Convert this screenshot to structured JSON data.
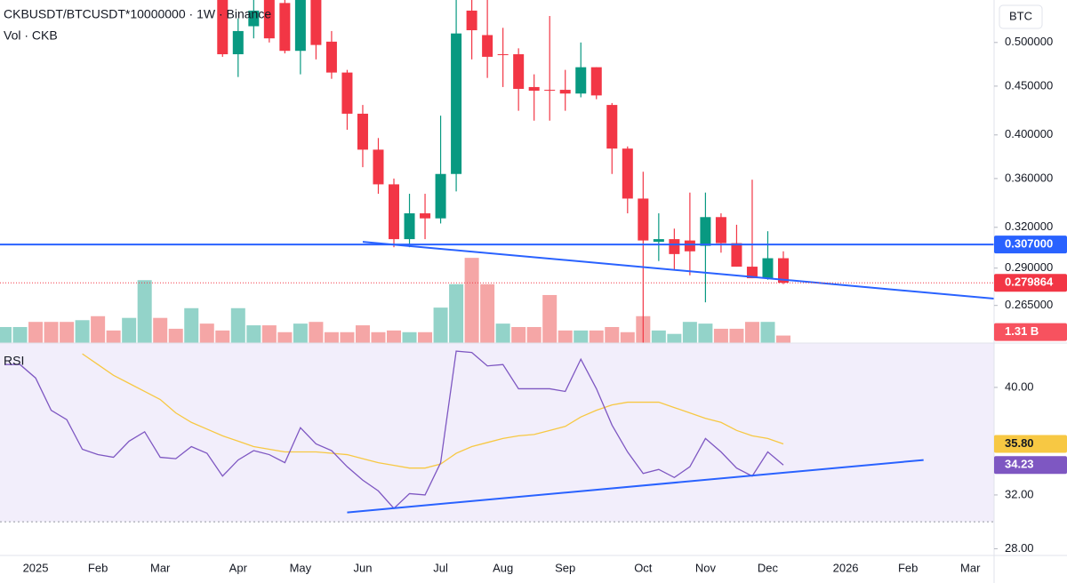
{
  "chart_data": {
    "type": "candlestick",
    "title": "CKBUSDT/BTCUSDT*10000000 · 1W · Binance",
    "currency": "BTC",
    "log_scale": true,
    "grid": false,
    "up_color": "#089981",
    "down_color": "#f23645",
    "categories": [
      null,
      null,
      "2025",
      null,
      null,
      null,
      "Feb",
      null,
      null,
      null,
      "Mar",
      null,
      null,
      null,
      null,
      "Apr",
      null,
      null,
      null,
      "May",
      null,
      null,
      null,
      "Jun",
      null,
      null,
      null,
      null,
      "Jul",
      null,
      null,
      null,
      "Aug",
      null,
      null,
      null,
      "Sep",
      null,
      null,
      null,
      null,
      "Oct",
      null,
      null,
      null,
      "Nov",
      null,
      null,
      null,
      "Dec",
      null,
      null,
      null,
      null,
      "2026",
      null,
      null,
      null,
      "Feb",
      null,
      null,
      null,
      "Mar"
    ],
    "open": [
      null,
      null,
      null,
      null,
      null,
      null,
      null,
      null,
      null,
      null,
      null,
      null,
      null,
      null,
      0.56,
      0.486,
      0.52,
      0.56,
      0.55,
      0.49,
      0.56,
      0.501,
      0.465,
      0.421,
      0.386,
      0.355,
      0.311,
      0.331,
      0.327,
      0.364,
      0.54,
      0.509,
      0.486,
      0.486,
      0.449,
      0.446,
      0.446,
      0.442,
      0.471,
      0.43,
      0.387,
      0.343,
      0.309,
      0.311,
      0.31,
      0.306,
      0.328,
      0.308,
      0.291,
      0.283,
      0.297,
      null,
      null,
      null,
      null,
      null,
      null,
      null,
      null,
      null,
      null,
      null,
      null
    ],
    "high": [
      null,
      null,
      null,
      null,
      null,
      null,
      null,
      null,
      null,
      null,
      null,
      null,
      null,
      null,
      0.58,
      0.53,
      0.56,
      0.57,
      0.56,
      0.57,
      0.57,
      0.514,
      0.468,
      0.43,
      0.397,
      0.36,
      0.347,
      0.347,
      0.419,
      0.56,
      0.58,
      0.555,
      0.518,
      0.493,
      0.463,
      0.533,
      0.468,
      0.5,
      0.471,
      0.432,
      0.389,
      0.366,
      0.331,
      0.319,
      0.348,
      0.348,
      0.331,
      0.322,
      0.359,
      0.317,
      0.302,
      null,
      null,
      null,
      null,
      null,
      null,
      null,
      null,
      null,
      null,
      null,
      null
    ],
    "low": [
      null,
      null,
      null,
      null,
      null,
      null,
      null,
      null,
      null,
      null,
      null,
      null,
      null,
      null,
      0.483,
      0.46,
      0.505,
      0.5,
      0.487,
      0.463,
      0.48,
      0.458,
      0.405,
      0.37,
      0.347,
      0.305,
      0.305,
      0.311,
      0.323,
      0.349,
      0.48,
      0.459,
      0.449,
      0.424,
      0.414,
      0.414,
      0.424,
      0.438,
      0.436,
      0.364,
      0.331,
      0.242,
      0.295,
      0.289,
      0.285,
      0.267,
      0.301,
      0.291,
      0.283,
      0.282,
      0.279,
      null,
      null,
      null,
      null,
      null,
      null,
      null,
      null,
      null,
      null,
      null,
      null
    ],
    "close": [
      null,
      null,
      null,
      null,
      null,
      null,
      null,
      null,
      null,
      null,
      null,
      null,
      null,
      null,
      0.486,
      0.514,
      0.54,
      0.505,
      0.49,
      0.56,
      0.497,
      0.465,
      0.421,
      0.386,
      0.355,
      0.311,
      0.331,
      0.327,
      0.364,
      0.511,
      0.515,
      0.483,
      0.485,
      0.447,
      0.445,
      0.445,
      0.442,
      0.471,
      0.44,
      0.387,
      0.343,
      0.31,
      0.311,
      0.3,
      0.302,
      0.328,
      0.308,
      0.291,
      0.283,
      0.297,
      0.279864,
      null,
      null,
      null,
      null,
      null,
      null,
      null,
      null,
      null,
      null,
      null,
      null
    ],
    "ylim": [
      0.242,
      0.554
    ],
    "yticks": [
      {
        "value": 0.5,
        "label": "0.500000"
      },
      {
        "value": 0.45,
        "label": "0.450000"
      },
      {
        "value": 0.4,
        "label": "0.400000"
      },
      {
        "value": 0.36,
        "label": "0.360000"
      },
      {
        "value": 0.32,
        "label": "0.320000"
      },
      {
        "value": 0.29,
        "label": "0.290000"
      },
      {
        "value": 0.265,
        "label": "0.265000"
      }
    ],
    "hline": {
      "value": 0.307,
      "label": "0.307000",
      "color": "#2962ff"
    },
    "trendline": {
      "x": [
        23,
        50
      ],
      "y": [
        0.309,
        0.282
      ],
      "extend": "right",
      "color": "#2962ff"
    },
    "volume": {
      "title": "Vol · CKB",
      "ylim": [
        0,
        60
      ],
      "values": [
        2.8,
        2.8,
        3.7,
        3.7,
        3.7,
        4.0,
        4.7,
        2.2,
        4.4,
        11.0,
        4.4,
        2.5,
        6.1,
        3.4,
        2.2,
        6.1,
        3.1,
        3.1,
        1.9,
        3.4,
        3.7,
        1.9,
        1.9,
        3.1,
        1.9,
        2.2,
        1.9,
        1.9,
        6.2,
        10.3,
        14.9,
        10.3,
        3.4,
        2.8,
        2.8,
        8.4,
        2.2,
        2.2,
        2.2,
        2.8,
        1.9,
        4.7,
        2.2,
        1.6,
        3.7,
        3.4,
        2.5,
        2.5,
        3.7,
        3.7,
        1.31,
        null,
        null,
        null,
        null,
        null,
        null,
        null,
        null,
        null,
        null,
        null,
        null
      ],
      "colors": [
        "#93d3c9",
        "#93d3c9",
        "#f5a6a6",
        "#f5a6a6",
        "#f5a6a6",
        "#93d3c9",
        "#f5a6a6",
        "#f5a6a6",
        "#93d3c9",
        "#93d3c9",
        "#f5a6a6",
        "#f5a6a6",
        "#93d3c9",
        "#f5a6a6",
        "#f5a6a6",
        "#93d3c9",
        "#93d3c9",
        "#f5a6a6",
        "#f5a6a6",
        "#93d3c9",
        "#f5a6a6",
        "#f5a6a6",
        "#f5a6a6",
        "#f5a6a6",
        "#f5a6a6",
        "#f5a6a6",
        "#93d3c9",
        "#f5a6a6",
        "#93d3c9",
        "#93d3c9",
        "#f5a6a6",
        "#f5a6a6",
        "#93d3c9",
        "#f5a6a6",
        "#f5a6a6",
        "#f5a6a6",
        "#f5a6a6",
        "#93d3c9",
        "#f5a6a6",
        "#f5a6a6",
        "#f5a6a6",
        "#f5a6a6",
        "#93d3c9",
        "#93d3c9",
        "#93d3c9",
        "#93d3c9",
        "#f5a6a6",
        "#f5a6a6",
        "#f5a6a6",
        "#93d3c9",
        "#f5a6a6",
        null,
        null,
        null,
        null,
        null,
        null,
        null,
        null,
        null,
        null,
        null,
        null
      ],
      "last_value_label": "1.31 B"
    },
    "rsi": {
      "title": "RSI",
      "color": "#7e57c2",
      "ylim": [
        27.5,
        43.3
      ],
      "yticks": [
        {
          "value": 40,
          "label": "40.00"
        },
        {
          "value": 32,
          "label": "32.00"
        },
        {
          "value": 28,
          "label": "28.00"
        }
      ],
      "oversold_line": 30,
      "values": [
        41.7,
        41.7,
        40.7,
        38.3,
        37.6,
        35.4,
        35.0,
        34.8,
        36.0,
        36.7,
        34.8,
        34.7,
        35.6,
        35.1,
        33.4,
        34.6,
        35.3,
        35.0,
        34.4,
        37.0,
        35.8,
        35.3,
        34.1,
        33.1,
        32.3,
        31.0,
        32.1,
        32.0,
        34.4,
        42.7,
        42.6,
        41.6,
        41.7,
        39.9,
        39.9,
        39.9,
        39.7,
        42.1,
        39.9,
        37.2,
        35.2,
        33.6,
        33.9,
        33.3,
        34.1,
        36.2,
        35.2,
        34.0,
        33.4,
        35.2,
        34.23,
        null,
        null,
        null,
        null,
        null,
        null,
        null,
        null,
        null,
        null,
        null,
        null
      ],
      "ma": {
        "color": "#f7c843",
        "values": [
          null,
          null,
          null,
          null,
          null,
          42.5,
          41.7,
          40.9,
          40.3,
          39.7,
          39.1,
          38.1,
          37.4,
          36.9,
          36.4,
          36.0,
          35.6,
          35.4,
          35.2,
          35.2,
          35.2,
          35.1,
          35.0,
          34.7,
          34.4,
          34.2,
          34.0,
          34.0,
          34.3,
          35.1,
          35.6,
          35.9,
          36.2,
          36.4,
          36.5,
          36.8,
          37.1,
          37.8,
          38.3,
          38.7,
          38.9,
          38.9,
          38.9,
          38.5,
          38.1,
          37.7,
          37.4,
          36.8,
          36.4,
          36.2,
          35.8,
          null,
          null,
          null,
          null,
          null,
          null,
          null,
          null,
          null,
          null,
          null,
          null
        ],
        "last_value_label": "35.80"
      },
      "trendline": {
        "x": [
          22,
          59
        ],
        "y": [
          30.7,
          34.6
        ],
        "color": "#2962ff"
      }
    }
  }
}
